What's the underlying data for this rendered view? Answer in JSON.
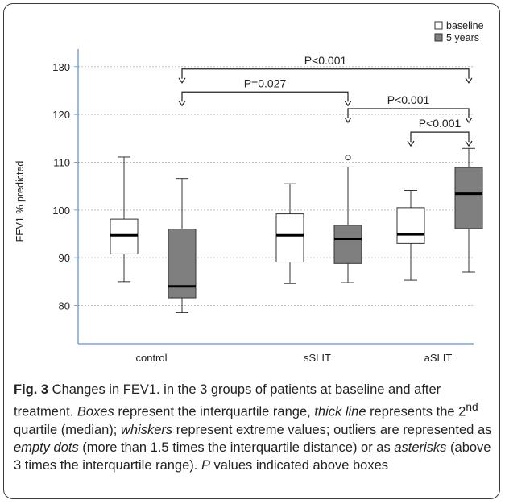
{
  "chart_data": {
    "type": "box",
    "ylabel": "FEV1 % predicted",
    "ylim": [
      72,
      133
    ],
    "yticks": [
      80,
      90,
      100,
      110,
      120,
      130
    ],
    "grid": true,
    "legend_position": "top-right",
    "categories": [
      "control",
      "sSLIT",
      "aSLIT"
    ],
    "series": [
      {
        "name": "baseline",
        "color": "#ffffff",
        "boxes": [
          {
            "whisker_low": 85,
            "q1": 90.8,
            "median": 94.7,
            "q3": 98.1,
            "whisker_high": 111.1,
            "outliers": []
          },
          {
            "whisker_low": 84.6,
            "q1": 89.1,
            "median": 94.7,
            "q3": 99.2,
            "whisker_high": 105.5,
            "outliers": []
          },
          {
            "whisker_low": 85.3,
            "q1": 93.0,
            "median": 94.9,
            "q3": 100.5,
            "whisker_high": 104.1,
            "outliers": []
          }
        ]
      },
      {
        "name": "5 years",
        "color": "#7f7f7f",
        "boxes": [
          {
            "whisker_low": 78.5,
            "q1": 81.6,
            "median": 84.0,
            "q3": 96.0,
            "whisker_high": 106.6,
            "outliers": []
          },
          {
            "whisker_low": 84.8,
            "q1": 88.8,
            "median": 94.0,
            "q3": 96.8,
            "whisker_high": 109.0,
            "outliers": [
              111
            ]
          },
          {
            "whisker_low": 87.0,
            "q1": 96.1,
            "median": 103.4,
            "q3": 108.9,
            "whisker_high": 112.9,
            "outliers": []
          }
        ]
      }
    ],
    "annotations": [
      {
        "text": "P<0.001",
        "from": [
          "control",
          "5 years"
        ],
        "to": [
          "aSLIT",
          "5 years"
        ],
        "y": 129.5
      },
      {
        "text": "P=0.027",
        "from": [
          "control",
          "5 years"
        ],
        "to": [
          "sSLIT",
          "5 years"
        ],
        "y": 124.7
      },
      {
        "text": "P<0.001",
        "from": [
          "sSLIT",
          "5 years"
        ],
        "to": [
          "aSLIT",
          "5 years"
        ],
        "y": 121.2
      },
      {
        "text": "P<0.001",
        "from": [
          "aSLIT",
          "baseline"
        ],
        "to": [
          "aSLIT",
          "5 years"
        ],
        "y": 116.3
      }
    ]
  },
  "caption": {
    "label": "Fig. 3",
    "text_1": " Changes in FEV1. in the 3 groups of patients at baseline and after treatment. ",
    "boxes_word": "Boxes",
    "text_2": " represent the interquartile range, ",
    "thick_line_word": "thick line",
    "text_3": " represents the 2",
    "superscript": "nd",
    "text_4": " quartile (median); ",
    "whiskers_word": "whiskers",
    "text_5": " represent extreme values; outliers are represented as ",
    "empty_dots_word": "empty dots",
    "text_6": " (more than 1.5 times the interquartile distance) or as ",
    "asterisks_word": "asterisks",
    "text_7": " (above 3 times the interquartile range). ",
    "p_word": "P",
    "text_8": " values indicated above boxes"
  }
}
